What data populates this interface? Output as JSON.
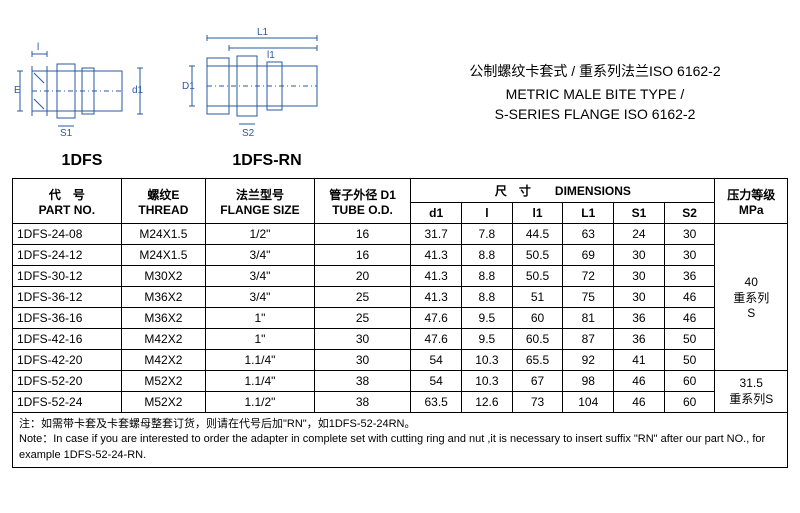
{
  "diagrams": {
    "left_label": "1DFS",
    "right_label": "1DFS-RN",
    "dim_labels": {
      "E": "E",
      "S1": "S1",
      "d1": "d1",
      "D1": "D1",
      "S2": "S2",
      "L1": "L1",
      "l1": "l1",
      "l": "l"
    }
  },
  "title": {
    "cn": "公制螺纹卡套式 / 重系列法兰ISO 6162-2",
    "en_line1": "METRIC MALE BITE TYPE /",
    "en_line2": "S-SERIES FLANGE ISO 6162-2"
  },
  "headers": {
    "part_cn": "代　号",
    "part_en": "PART  NO.",
    "thread_cn": "螺纹E",
    "thread_en": "THREAD",
    "flange_cn": "法兰型号",
    "flange_en": "FLANGE SIZE",
    "tube_cn": "管子外径 D1",
    "tube_en": "TUBE O.D.",
    "dims_cn": "尺　寸",
    "dims_en": "DIMENSIONS",
    "d1": "d1",
    "l": "l",
    "l1": "l1",
    "L1": "L1",
    "S1": "S1",
    "S2": "S2",
    "press_cn": "压力等级",
    "press_en": "MPa"
  },
  "rows": [
    {
      "part": "1DFS-24-08",
      "thread": "M24X1.5",
      "flange": "1/2\"",
      "tube": "16",
      "d1": "31.7",
      "l": "7.8",
      "l1": "44.5",
      "L1": "63",
      "S1": "24",
      "S2": "30"
    },
    {
      "part": "1DFS-24-12",
      "thread": "M24X1.5",
      "flange": "3/4\"",
      "tube": "16",
      "d1": "41.3",
      "l": "8.8",
      "l1": "50.5",
      "L1": "69",
      "S1": "30",
      "S2": "30"
    },
    {
      "part": "1DFS-30-12",
      "thread": "M30X2",
      "flange": "3/4\"",
      "tube": "20",
      "d1": "41.3",
      "l": "8.8",
      "l1": "50.5",
      "L1": "72",
      "S1": "30",
      "S2": "36"
    },
    {
      "part": "1DFS-36-12",
      "thread": "M36X2",
      "flange": "3/4\"",
      "tube": "25",
      "d1": "41.3",
      "l": "8.8",
      "l1": "51",
      "L1": "75",
      "S1": "30",
      "S2": "46"
    },
    {
      "part": "1DFS-36-16",
      "thread": "M36X2",
      "flange": "1\"",
      "tube": "25",
      "d1": "47.6",
      "l": "9.5",
      "l1": "60",
      "L1": "81",
      "S1": "36",
      "S2": "46"
    },
    {
      "part": "1DFS-42-16",
      "thread": "M42X2",
      "flange": "1\"",
      "tube": "30",
      "d1": "47.6",
      "l": "9.5",
      "l1": "60.5",
      "L1": "87",
      "S1": "36",
      "S2": "50"
    },
    {
      "part": "1DFS-42-20",
      "thread": "M42X2",
      "flange": "1.1/4\"",
      "tube": "30",
      "d1": "54",
      "l": "10.3",
      "l1": "65.5",
      "L1": "92",
      "S1": "41",
      "S2": "50"
    },
    {
      "part": "1DFS-52-20",
      "thread": "M52X2",
      "flange": "1.1/4\"",
      "tube": "38",
      "d1": "54",
      "l": "10.3",
      "l1": "67",
      "L1": "98",
      "S1": "46",
      "S2": "60"
    },
    {
      "part": "1DFS-52-24",
      "thread": "M52X2",
      "flange": "1.1/2\"",
      "tube": "38",
      "d1": "63.5",
      "l": "12.6",
      "l1": "73",
      "L1": "104",
      "S1": "46",
      "S2": "60"
    }
  ],
  "pressure_groups": [
    {
      "rowspan": 7,
      "mpa": "40",
      "series": "重系列",
      "series2": "S"
    },
    {
      "rowspan": 2,
      "mpa": "31.5",
      "series": "重系列S",
      "series2": ""
    }
  ],
  "note": {
    "cn": "注：如需带卡套及卡套螺母整套订货，则请在代号后加\"RN\"，如1DFS-52-24RN。",
    "en": "Note：In case if you are interested to order the adapter in complete set with cutting ring and nut ,it is necessary to insert suffix \"RN\" after our part NO., for example 1DFS-52-24-RN."
  },
  "colors": {
    "line": "#2a5aa0",
    "text": "#000000",
    "bg": "#ffffff"
  }
}
